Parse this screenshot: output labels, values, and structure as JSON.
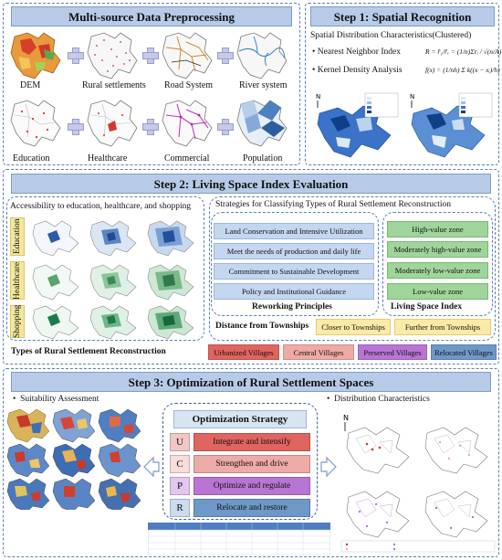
{
  "step0": {
    "title": "Multi-source Data Preprocessing",
    "maps": [
      "DEM",
      "Rural settlements",
      "Road System",
      "River system",
      "Education",
      "Healthcare",
      "Commercial",
      "Population"
    ]
  },
  "step1": {
    "title": "Step 1: Spatial Recognition",
    "subtitle": "Spatial Distribution Characteristics(Clustered)",
    "nn_label": "Nearest Neighbor Index",
    "nn_formula": "R = r̄₁/r̄ₑ = (1/n)Σrᵢ / √(n/A)",
    "kd_label": "Kernel Density Analysis",
    "kd_formula": "f(x) = (1/nh) Σ k((x − xᵢ)/h)"
  },
  "step2": {
    "title": "Step 2: Living Space Index Evaluation",
    "access_title": "Accessibility to education, healthcare, and shopping",
    "side_tabs": [
      "Education",
      "Healthcare",
      "Shopping"
    ],
    "strategies_title": "Strategies for Classifying Types of Rural Settlement Reconstruction",
    "principles": [
      "Land Conservation and Intensive Utilization",
      "Meet the needs of production and daily life",
      "Commitment to Sustainable Development",
      "Policy and Institutional Guidance"
    ],
    "principles_label": "Reworking Principles",
    "zones": [
      "High-value zone",
      "Moderately high-value zone",
      "Moderately low-value zone",
      "Low-value zone"
    ],
    "zones_label": "Living Space Index",
    "distance_label": "Distance from Townships",
    "closer": "Closer to Townships",
    "further": "Further from Townships",
    "types_label": "Types of Rural Settlement Reconstruction",
    "types": [
      "Urbanized Villages",
      "Central Villages",
      "Preserved Villages",
      "Relocated Villages"
    ]
  },
  "step3": {
    "title": "Step 3: Optimization of Rural Settlement Spaces",
    "suitability": "Suitability Assessment",
    "distribution": "Distribution Characteristics",
    "strategy_title": "Optimization Strategy",
    "strategies": [
      {
        "letter": "U",
        "text": "Integrate and intensify"
      },
      {
        "letter": "C",
        "text": "Strengthen and drive"
      },
      {
        "letter": "P",
        "text": "Optimize and regulate"
      },
      {
        "letter": "R",
        "text": "Relocate and restore"
      }
    ]
  },
  "colors": {
    "banner": "#b7cbe8",
    "dashed_border": "#5b7fb8",
    "urbanized": "#e0645f",
    "central": "#eeaaa6",
    "preserved": "#b975d4",
    "relocated": "#6e98c8",
    "green_zone": "#9fd59a",
    "yellow_box": "#fbe9a6"
  }
}
